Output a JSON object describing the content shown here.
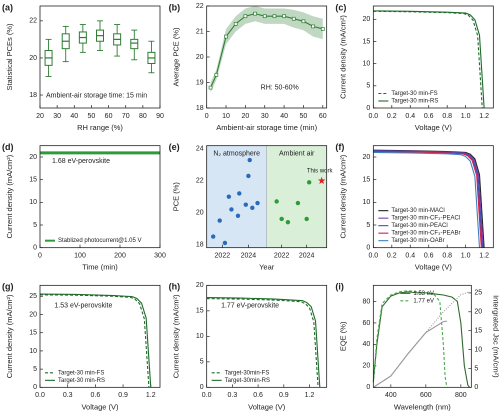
{
  "chart_data": [
    {
      "type": "box",
      "panel_label": "(a)",
      "xlabel": "RH range (%)",
      "ylabel": "Statistical PCEs (%)",
      "annotation": "Ambient-air storage time: 15 min",
      "color": "#2e7d32",
      "xlim": [
        20,
        90
      ],
      "xticks": [
        20,
        30,
        40,
        50,
        60,
        70,
        80,
        90
      ],
      "ylim": [
        17.3,
        22.8
      ],
      "yticks": [
        18,
        20,
        22
      ],
      "x": [
        25,
        35,
        45,
        55,
        65,
        75,
        85
      ],
      "min": [
        19.0,
        19.8,
        20.3,
        20.4,
        20.1,
        19.9,
        19.2
      ],
      "q1": [
        19.6,
        20.5,
        20.8,
        20.9,
        20.7,
        20.5,
        19.7
      ],
      "median": [
        20.0,
        20.9,
        21.1,
        21.2,
        21.0,
        20.8,
        20.0
      ],
      "q3": [
        20.4,
        21.3,
        21.4,
        21.5,
        21.3,
        21.0,
        20.3
      ],
      "max": [
        21.0,
        21.7,
        21.8,
        22.0,
        21.8,
        21.5,
        20.9
      ]
    },
    {
      "type": "line",
      "panel_label": "(b)",
      "xlabel": "Ambient-air storage time (min)",
      "ylabel": "Average PCE (%)",
      "annotation": "RH: 50-60%",
      "xlim": [
        0,
        62
      ],
      "xticks": [
        0,
        10,
        20,
        30,
        40,
        50,
        60
      ],
      "ylim": [
        18,
        22
      ],
      "yticks": [
        18,
        19,
        20,
        21,
        22
      ],
      "series": [
        {
          "color": "#2e7d32",
          "style": "solid",
          "markers": true,
          "x": [
            2,
            5,
            10,
            15,
            20,
            25,
            30,
            35,
            40,
            45,
            50,
            55,
            60
          ],
          "values": [
            18.8,
            19.3,
            20.8,
            21.3,
            21.6,
            21.7,
            21.6,
            21.6,
            21.6,
            21.5,
            21.4,
            21.2,
            21.1
          ],
          "error": [
            0.2,
            0.2,
            0.3,
            0.3,
            0.3,
            0.3,
            0.3,
            0.3,
            0.3,
            0.35,
            0.35,
            0.4,
            0.4
          ]
        }
      ]
    },
    {
      "type": "line",
      "panel_label": "(c)",
      "xlabel": "Voltage (V)",
      "ylabel": "Current density (mA/cm²)",
      "legend": "lower left",
      "xlim": [
        0,
        1.3
      ],
      "xticks": [
        {
          "value": 0,
          "label": "0.0"
        },
        {
          "value": 0.2,
          "label": "0.2"
        },
        {
          "value": 0.4,
          "label": "0.4"
        },
        {
          "value": 0.6,
          "label": "0.6"
        },
        {
          "value": 0.8,
          "label": "0.8"
        },
        {
          "value": 1,
          "label": "1.0"
        },
        {
          "value": 1.2,
          "label": "1.2"
        }
      ],
      "ylim": [
        0,
        23
      ],
      "yticks": [
        0,
        5,
        10,
        15,
        20
      ],
      "series": [
        {
          "name": "Target-30 min-FS",
          "color": "#1e6b2a",
          "style": "dashed",
          "x": [
            0,
            0.4,
            0.8,
            0.98,
            1.03,
            1.08,
            1.13,
            1.18
          ],
          "values": [
            21.8,
            21.7,
            21.5,
            21.3,
            20.9,
            19.8,
            16.3,
            0
          ]
        },
        {
          "name": "Target-30 min-RS",
          "color": "#1e6b2a",
          "style": "solid",
          "x": [
            0,
            0.4,
            0.8,
            1.0,
            1.05,
            1.1,
            1.15,
            1.2
          ],
          "values": [
            21.9,
            21.8,
            21.6,
            21.4,
            21.0,
            19.9,
            16.4,
            0
          ]
        }
      ]
    },
    {
      "type": "line",
      "panel_label": "(d)",
      "xlabel": "Time (min)",
      "ylabel": "Current density (mA/cm²)",
      "annotation": "1.68 eV-perovskite",
      "legend": "lower left",
      "xlim": [
        0,
        300
      ],
      "xticks": [
        0,
        100,
        200,
        300
      ],
      "ylim": [
        0,
        22.5
      ],
      "yticks": [
        0,
        5,
        10,
        15,
        20
      ],
      "series": [
        {
          "name": "Stablized photocurrent@1.05 V",
          "color": "#2e9a3a",
          "style": "thick",
          "x": [
            0,
            100,
            200,
            300
          ],
          "values": [
            20.9,
            20.9,
            20.9,
            20.9
          ]
        }
      ]
    },
    {
      "type": "scatter",
      "panel_label": "(e)",
      "xlabel": "Year",
      "ylabel": "PCE (%)",
      "ylim": [
        17.8,
        24.2
      ],
      "yticks": [
        18,
        20,
        22,
        24
      ],
      "regions": [
        {
          "label": "N₂ atmosphere",
          "background": "#d6e6f5",
          "color": "#2a6ab8",
          "xlim": [
            2020.8,
            2025.4
          ],
          "xticks": [
            2022,
            2024
          ],
          "x": [
            2021.3,
            2021.8,
            2022.2,
            2022.5,
            2022.7,
            2023.2,
            2023.3,
            2023.8,
            2024.0,
            2024.1,
            2024.3,
            2024.7
          ],
          "values": [
            18.5,
            19.5,
            18.1,
            21.0,
            20.2,
            19.8,
            21.2,
            20.5,
            22.3,
            23.3,
            20.3,
            20.6
          ]
        },
        {
          "label": "Ambient air",
          "background": "#d9efd8",
          "color": "#2e9a3a",
          "xlim": [
            2020.8,
            2025.6
          ],
          "xticks": [
            2022,
            2024
          ],
          "x": [
            2021.6,
            2022.0,
            2022.5,
            2023.3,
            2024.0,
            2024.2
          ],
          "values": [
            20.7,
            19.6,
            19.4,
            20.6,
            19.6,
            21.9
          ],
          "star": {
            "label": "This work",
            "color": "#e02020",
            "x": 2025.2,
            "value": 22.0
          }
        }
      ]
    },
    {
      "type": "line",
      "panel_label": "(f)",
      "xlabel": "Voltage (V)",
      "ylabel": "Current density (mA/cm²)",
      "legend": "lower left",
      "xlim": [
        0,
        1.3
      ],
      "xticks": [
        {
          "value": 0,
          "label": "0.0"
        },
        {
          "value": 0.2,
          "label": "0.2"
        },
        {
          "value": 0.4,
          "label": "0.4"
        },
        {
          "value": 0.6,
          "label": "0.6"
        },
        {
          "value": 0.8,
          "label": "0.8"
        },
        {
          "value": 1,
          "label": "1.0"
        },
        {
          "value": 1.2,
          "label": "1.2"
        }
      ],
      "ylim": [
        0,
        22.5
      ],
      "yticks": [
        0,
        5,
        10,
        15,
        20
      ],
      "series": [
        {
          "name": "Target-30 min-MACl",
          "color": "#222222",
          "style": "solid",
          "x": [
            0,
            0.4,
            0.8,
            1.0,
            1.05,
            1.1,
            1.15,
            1.2
          ],
          "values": [
            21.5,
            21.4,
            21.2,
            21.0,
            20.6,
            19.6,
            16.1,
            0
          ]
        },
        {
          "name": "Target-30 min-CF₃-PEACl",
          "color": "#7b3fa0",
          "style": "solid",
          "x": [
            0,
            0.4,
            0.8,
            0.99,
            1.04,
            1.09,
            1.14,
            1.19
          ],
          "values": [
            21.4,
            21.3,
            21.1,
            20.9,
            20.5,
            19.5,
            16.0,
            0
          ]
        },
        {
          "name": "Target-30 min-PEACl",
          "color": "#3a4fc0",
          "style": "solid",
          "x": [
            0,
            0.4,
            0.8,
            0.98,
            1.03,
            1.08,
            1.13,
            1.18
          ],
          "values": [
            21.3,
            21.2,
            21.0,
            20.8,
            20.4,
            19.4,
            16.0,
            0
          ]
        },
        {
          "name": "Target-30 min-CF₃-PEABr",
          "color": "#d0204a",
          "style": "solid",
          "x": [
            0,
            0.4,
            0.8,
            0.97,
            1.02,
            1.07,
            1.12,
            1.17
          ],
          "values": [
            21.2,
            21.1,
            20.9,
            20.7,
            20.3,
            19.3,
            15.9,
            0
          ]
        },
        {
          "name": "Target-30 min-OABr",
          "color": "#4080c0",
          "style": "solid",
          "x": [
            0,
            0.4,
            0.8,
            0.95,
            1.0,
            1.05,
            1.1,
            1.15
          ],
          "values": [
            21.0,
            20.9,
            20.7,
            20.5,
            20.1,
            19.1,
            15.7,
            0
          ]
        }
      ]
    },
    {
      "type": "line",
      "panel_label": "(g)",
      "xlabel": "Voltage (V)",
      "ylabel": "Current density (mA/cm²)",
      "annotation": "1.53 eV-perovskite",
      "legend": "lower left",
      "xlim": [
        0,
        1.3
      ],
      "xticks": [
        {
          "value": 0,
          "label": "0.0"
        },
        {
          "value": 0.3,
          "label": "0.3"
        },
        {
          "value": 0.6,
          "label": "0.6"
        },
        {
          "value": 0.9,
          "label": "0.9"
        },
        {
          "value": 1.2,
          "label": "1.2"
        }
      ],
      "ylim": [
        0,
        28
      ],
      "yticks": [
        0,
        5,
        10,
        15,
        20,
        25
      ],
      "series": [
        {
          "name": "Target-30 min-FS",
          "color": "#1e6b2a",
          "style": "dashed",
          "x": [
            0,
            0.4,
            0.8,
            0.98,
            1.03,
            1.08,
            1.13,
            1.18
          ],
          "values": [
            25.4,
            25.3,
            25.0,
            24.7,
            24.2,
            22.9,
            18.8,
            0
          ]
        },
        {
          "name": "Target-30 min-RS",
          "color": "#1e6b2a",
          "style": "solid",
          "x": [
            0,
            0.4,
            0.8,
            1.0,
            1.05,
            1.1,
            1.15,
            1.2
          ],
          "values": [
            25.6,
            25.5,
            25.2,
            24.9,
            24.4,
            23.1,
            19.0,
            0
          ]
        }
      ]
    },
    {
      "type": "line",
      "panel_label": "(h)",
      "xlabel": "Voltage (V)",
      "ylabel": "Current density (mA/cm²)",
      "annotation": "1.77 eV-perovskite",
      "legend": "lower left",
      "xlim": [
        0,
        1.4
      ],
      "xticks": [
        {
          "value": 0,
          "label": "0.0"
        },
        {
          "value": 0.3,
          "label": "0.3"
        },
        {
          "value": 0.6,
          "label": "0.6"
        },
        {
          "value": 0.9,
          "label": "0.9"
        },
        {
          "value": 1.2,
          "label": "1.2"
        }
      ],
      "ylim": [
        0,
        20
      ],
      "yticks": [
        0,
        5,
        10,
        15,
        20
      ],
      "series": [
        {
          "name": "Target-30min-FS",
          "color": "#1e6b2a",
          "style": "dashed",
          "x": [
            0,
            0.4,
            0.8,
            1.1,
            1.15,
            1.2,
            1.25,
            1.3
          ],
          "values": [
            17.4,
            17.3,
            17.1,
            16.8,
            16.4,
            15.6,
            12.8,
            0
          ]
        },
        {
          "name": "Target-30min-RS",
          "color": "#1e6b2a",
          "style": "solid",
          "x": [
            0,
            0.4,
            0.8,
            1.12,
            1.17,
            1.22,
            1.27,
            1.32
          ],
          "values": [
            17.6,
            17.5,
            17.3,
            17.0,
            16.6,
            15.8,
            13.0,
            0
          ]
        }
      ]
    },
    {
      "type": "line",
      "panel_label": "(i)",
      "xlabel": "Wavelength (nm)",
      "ylabel": "EQE (%)",
      "y2label": "Intergrated Jsc (mA/cm²)",
      "legend": "upper center",
      "xlim": [
        300,
        860
      ],
      "xticks": [
        400,
        600,
        800
      ],
      "ylim": [
        0,
        95
      ],
      "yticks": [
        0,
        20,
        40,
        60,
        80
      ],
      "y2lim": [
        0,
        27
      ],
      "y2ticks": [
        0,
        5,
        10,
        15,
        20,
        25
      ],
      "series": [
        {
          "name": "1.53 eV",
          "color": "#2d6a2d",
          "style": "solid",
          "x": [
            300,
            320,
            350,
            400,
            450,
            500,
            550,
            600,
            650,
            700,
            750,
            780,
            800,
            820,
            840,
            850
          ],
          "values": [
            5,
            40,
            75,
            85,
            88,
            89,
            88,
            88,
            87,
            86,
            84,
            80,
            60,
            20,
            2,
            0
          ]
        },
        {
          "name": "1.77 eV",
          "color": "#4caa4c",
          "style": "dashed",
          "x": [
            300,
            320,
            350,
            400,
            450,
            500,
            550,
            600,
            650,
            680,
            700,
            710,
            720
          ],
          "values": [
            5,
            45,
            78,
            86,
            89,
            90,
            89,
            88,
            86,
            80,
            40,
            10,
            0
          ]
        },
        {
          "color": "#999999",
          "style": "dotted",
          "axis": "y2",
          "x": [
            300,
            400,
            500,
            600,
            700,
            800,
            850
          ],
          "values": [
            0,
            3,
            9,
            14.5,
            20,
            24.5,
            25.3
          ]
        },
        {
          "color": "#999999",
          "style": "solid",
          "axis": "y2",
          "x": [
            300,
            400,
            500,
            600,
            700,
            720
          ],
          "values": [
            0,
            3,
            9,
            14.5,
            17.4,
            17.5
          ]
        }
      ]
    }
  ]
}
